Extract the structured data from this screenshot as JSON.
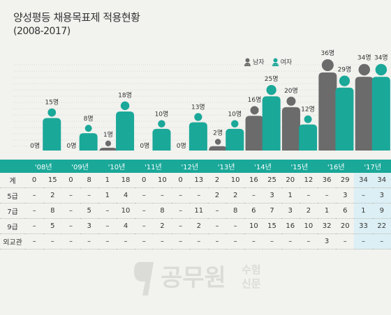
{
  "title": "양성평등 채용목표제 적용현황",
  "subtitle": "(2008-2017)",
  "legend": {
    "male": "남자",
    "female": "여자"
  },
  "colors": {
    "male": "#6b6b6b",
    "female": "#1aa899",
    "header_bg": "#1aa899",
    "highlight": "#dceff4",
    "background": "#f2f2ef"
  },
  "chart_data": {
    "type": "bar",
    "categories": [
      "'08년",
      "'09년",
      "'10년",
      "'11년",
      "'12년",
      "'13년",
      "'14년",
      "'15년",
      "'16년",
      "'17년"
    ],
    "series": [
      {
        "name": "남자",
        "values": [
          0,
          0,
          1,
          0,
          0,
          2,
          16,
          20,
          36,
          34
        ],
        "labels": [
          "0명",
          "0명",
          "1명",
          "0명",
          "0명",
          "2명",
          "16명",
          "20명",
          "36명",
          "34명"
        ]
      },
      {
        "name": "여자",
        "values": [
          15,
          8,
          18,
          10,
          13,
          10,
          25,
          12,
          29,
          34
        ],
        "labels": [
          "15명",
          "8명",
          "18명",
          "10명",
          "13명",
          "10명",
          "25명",
          "12명",
          "29명",
          "34명"
        ]
      }
    ]
  },
  "table": {
    "headers": [
      "'08년",
      "'09년",
      "'10년",
      "'11년",
      "'12년",
      "'13년",
      "'14년",
      "'15년",
      "'16년",
      "'17년"
    ],
    "rows": [
      {
        "label": "계",
        "cells": [
          "0",
          "15",
          "0",
          "8",
          "1",
          "18",
          "0",
          "10",
          "0",
          "13",
          "2",
          "10",
          "16",
          "25",
          "20",
          "12",
          "36",
          "29",
          "34",
          "34"
        ]
      },
      {
        "label": "5급",
        "cells": [
          "–",
          "2",
          "–",
          "–",
          "1",
          "4",
          "–",
          "–",
          "–",
          "–",
          "2",
          "2",
          "–",
          "3",
          "1",
          "–",
          "–",
          "3",
          "–",
          "3"
        ]
      },
      {
        "label": "7급",
        "cells": [
          "–",
          "8",
          "–",
          "5",
          "–",
          "10",
          "–",
          "8",
          "–",
          "11",
          "–",
          "8",
          "6",
          "7",
          "3",
          "2",
          "1",
          "6",
          "1",
          "9"
        ]
      },
      {
        "label": "9급",
        "cells": [
          "–",
          "5",
          "–",
          "3",
          "–",
          "4",
          "–",
          "2",
          "–",
          "2",
          "–",
          "–",
          "10",
          "15",
          "16",
          "10",
          "32",
          "20",
          "33",
          "22"
        ]
      },
      {
        "label": "외교관",
        "cells": [
          "–",
          "–",
          "–",
          "–",
          "–",
          "–",
          "–",
          "–",
          "–",
          "–",
          "–",
          "–",
          "–",
          "–",
          "–",
          "–",
          "3",
          "–",
          "–",
          "–"
        ]
      }
    ]
  },
  "watermark": {
    "logo": "공무원",
    "side_top": "수험",
    "side_bottom": "신문"
  }
}
